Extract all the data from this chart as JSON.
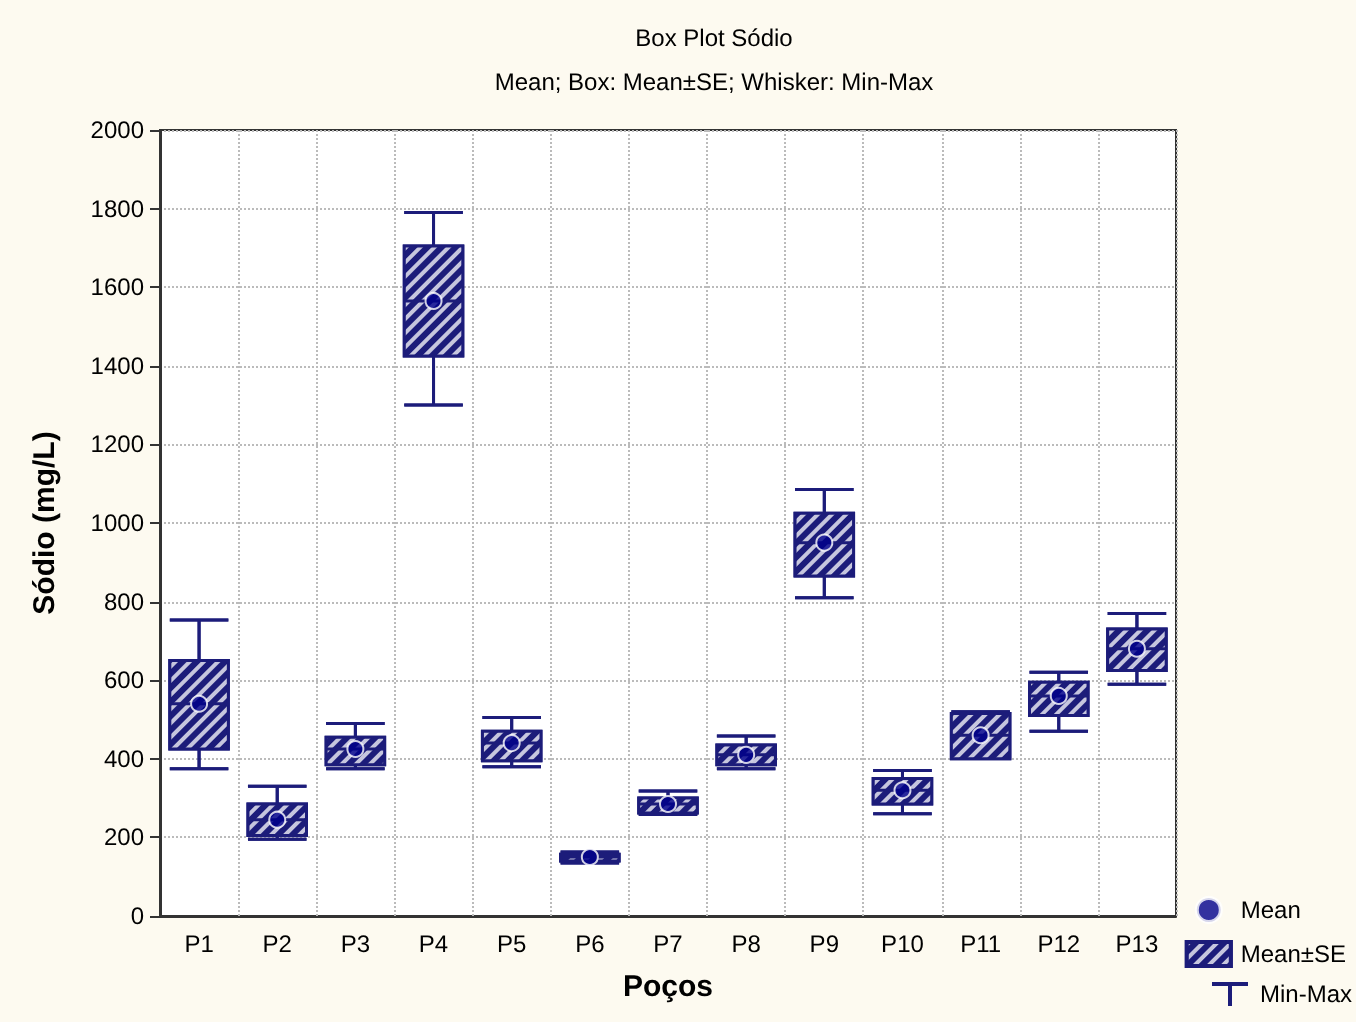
{
  "chart_data": {
    "type": "box",
    "title": "Box Plot Sódio",
    "subtitle": "Mean; Box: Mean±SE; Whisker: Min-Max",
    "xlabel": "Poços",
    "ylabel": "Sódio (mg/L)",
    "categories": [
      "P1",
      "P2",
      "P3",
      "P4",
      "P5",
      "P6",
      "P7",
      "P8",
      "P9",
      "P10",
      "P11",
      "P12",
      "P13"
    ],
    "ylim": [
      0,
      2000
    ],
    "yticks": [
      0,
      200,
      400,
      600,
      800,
      1000,
      1200,
      1400,
      1600,
      1800,
      2000
    ],
    "grid": true,
    "legend": "bottom right",
    "annotations": [
      "Min-Max"
    ],
    "series": [
      {
        "name": "Mean±SE",
        "color": "#1c1c7a",
        "boxes": [
          {
            "low": 375,
            "q1": 425,
            "median": 540,
            "q3": 650,
            "high": 753
          },
          {
            "low": 195,
            "q1": 205,
            "median": 245,
            "q3": 285,
            "high": 330
          },
          {
            "low": 375,
            "q1": 385,
            "median": 425,
            "q3": 455,
            "high": 490
          },
          {
            "low": 1300,
            "q1": 1425,
            "median": 1565,
            "q3": 1705,
            "high": 1790
          },
          {
            "low": 380,
            "q1": 395,
            "median": 440,
            "q3": 470,
            "high": 505
          },
          {
            "low": 135,
            "q1": 140,
            "median": 150,
            "q3": 157,
            "high": 163
          },
          {
            "low": 258,
            "q1": 262,
            "median": 285,
            "q3": 300,
            "high": 318
          },
          {
            "low": 375,
            "q1": 385,
            "median": 410,
            "q3": 435,
            "high": 458
          },
          {
            "low": 810,
            "q1": 865,
            "median": 950,
            "q3": 1025,
            "high": 1085
          },
          {
            "low": 260,
            "q1": 285,
            "median": 320,
            "q3": 350,
            "high": 370
          },
          {
            "low": 400,
            "q1": 400,
            "median": 460,
            "q3": 515,
            "high": 520
          },
          {
            "low": 470,
            "q1": 510,
            "median": 560,
            "q3": 595,
            "high": 620
          },
          {
            "low": 590,
            "q1": 625,
            "median": 680,
            "q3": 730,
            "high": 770
          }
        ]
      },
      {
        "type": "scatter",
        "name": "Mean",
        "color": "#00008b",
        "marker": "circle",
        "x": [
          "P1",
          "P2",
          "P3",
          "P4",
          "P5",
          "P6",
          "P7",
          "P8",
          "P9",
          "P10",
          "P11",
          "P12",
          "P13"
        ],
        "values": [
          540,
          245,
          425,
          1565,
          440,
          150,
          285,
          410,
          950,
          320,
          460,
          560,
          680
        ]
      }
    ]
  }
}
